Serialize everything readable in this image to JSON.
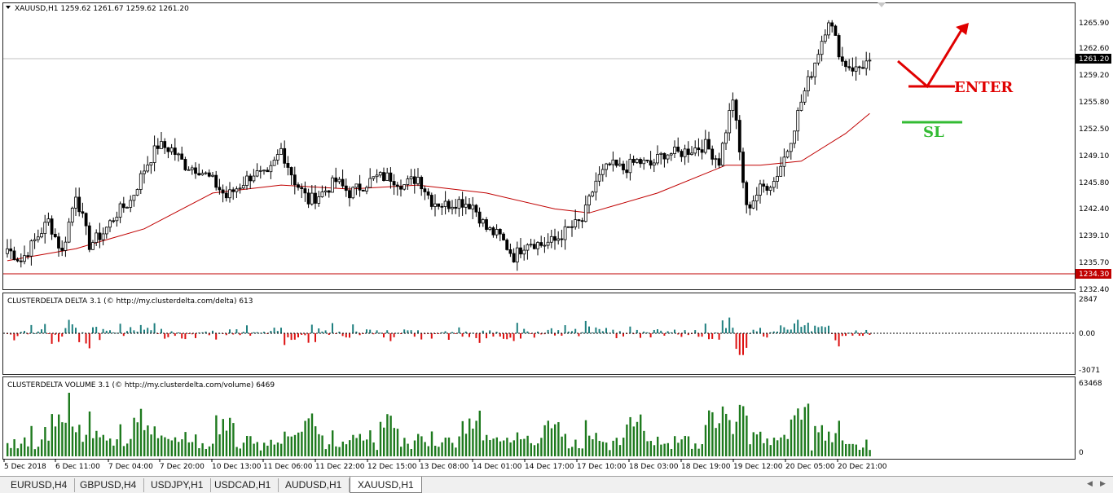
{
  "main_chart": {
    "header": "XAUUSD,H1  1259.62 1261.67 1259.62 1261.20",
    "current_price": "1261.20",
    "hline_price": "1234.30",
    "price_axis": [
      "1265.90",
      "1262.60",
      "1259.20",
      "1255.80",
      "1252.50",
      "1249.10",
      "1245.80",
      "1242.40",
      "1239.10",
      "1235.70",
      "1232.40"
    ],
    "annotations": {
      "enter": "ENTER",
      "sl": "SL"
    },
    "colors": {
      "candle": "#000000",
      "ma": "#c00000",
      "hline": "#c00000",
      "enter": "#e00000",
      "sl": "#33bb33"
    }
  },
  "delta_panel": {
    "header": "CLUSTERDELTA DELTA 3.1 (© http://my.clusterdelta.com/delta) 613",
    "axis": [
      "2847",
      "0.00",
      "-3071"
    ],
    "colors": {
      "positive": "#1f7f7f",
      "negative": "#dd1111"
    }
  },
  "volume_panel": {
    "header": "CLUSTERDELTA VOLUME 3.1 (© http://my.clusterdelta.com/volume) 6469",
    "axis": [
      "63468",
      "0"
    ],
    "colors": {
      "bar": "#1e7a1e"
    }
  },
  "time_axis": [
    "5 Dec 2018",
    "6 Dec 11:00",
    "7 Dec 04:00",
    "7 Dec 20:00",
    "10 Dec 13:00",
    "11 Dec 06:00",
    "11 Dec 22:00",
    "12 Dec 15:00",
    "13 Dec 08:00",
    "14 Dec 01:00",
    "14 Dec 17:00",
    "17 Dec 10:00",
    "18 Dec 03:00",
    "18 Dec 19:00",
    "19 Dec 12:00",
    "20 Dec 05:00",
    "20 Dec 21:00"
  ],
  "chart_data": {
    "type": "candlestick",
    "symbol": "XAUUSD",
    "timeframe": "H1",
    "ohlc_last": {
      "open": 1259.62,
      "high": 1261.67,
      "low": 1259.62,
      "close": 1261.2
    },
    "close_path": [
      [
        0,
        1237.5
      ],
      [
        4,
        1236.0
      ],
      [
        8,
        1238.5
      ],
      [
        12,
        1241.0
      ],
      [
        16,
        1237.0
      ],
      [
        20,
        1244.5
      ],
      [
        24,
        1238.0
      ],
      [
        28,
        1239.5
      ],
      [
        32,
        1242.0
      ],
      [
        36,
        1243.5
      ],
      [
        40,
        1247.5
      ],
      [
        44,
        1250.5
      ],
      [
        48,
        1250.0
      ],
      [
        52,
        1248.0
      ],
      [
        56,
        1247.5
      ],
      [
        60,
        1246.0
      ],
      [
        64,
        1244.0
      ],
      [
        68,
        1245.5
      ],
      [
        72,
        1247.0
      ],
      [
        76,
        1246.5
      ],
      [
        80,
        1250.0
      ],
      [
        84,
        1246.0
      ],
      [
        88,
        1243.5
      ],
      [
        92,
        1244.5
      ],
      [
        96,
        1246.0
      ],
      [
        100,
        1244.5
      ],
      [
        104,
        1245.5
      ],
      [
        108,
        1246.5
      ],
      [
        112,
        1246.5
      ],
      [
        116,
        1245.5
      ],
      [
        120,
        1246.5
      ],
      [
        124,
        1243.5
      ],
      [
        128,
        1243.0
      ],
      [
        132,
        1243.5
      ],
      [
        136,
        1243.0
      ],
      [
        140,
        1240.0
      ],
      [
        144,
        1239.0
      ],
      [
        148,
        1236.5
      ],
      [
        152,
        1238.5
      ],
      [
        156,
        1238.0
      ],
      [
        160,
        1238.5
      ],
      [
        164,
        1240.0
      ],
      [
        168,
        1241.0
      ],
      [
        172,
        1246.0
      ],
      [
        176,
        1248.0
      ],
      [
        180,
        1247.5
      ],
      [
        184,
        1248.5
      ],
      [
        188,
        1248.0
      ],
      [
        192,
        1249.5
      ],
      [
        196,
        1249.5
      ],
      [
        200,
        1250.0
      ],
      [
        204,
        1250.5
      ],
      [
        208,
        1248.5
      ],
      [
        212,
        1256.5
      ],
      [
        216,
        1242.5
      ],
      [
        220,
        1245.0
      ],
      [
        224,
        1246.0
      ],
      [
        228,
        1250.0
      ],
      [
        232,
        1256.0
      ],
      [
        236,
        1261.0
      ],
      [
        240,
        1266.5
      ],
      [
        244,
        1261.0
      ],
      [
        248,
        1260.0
      ],
      [
        252,
        1261.2
      ]
    ],
    "moving_average": [
      [
        0,
        1236.0
      ],
      [
        20,
        1237.5
      ],
      [
        40,
        1240.0
      ],
      [
        60,
        1244.5
      ],
      [
        80,
        1245.5
      ],
      [
        100,
        1245.0
      ],
      [
        120,
        1245.5
      ],
      [
        140,
        1244.5
      ],
      [
        160,
        1242.5
      ],
      [
        170,
        1242.0
      ],
      [
        190,
        1244.5
      ],
      [
        210,
        1248.0
      ],
      [
        220,
        1248.0
      ],
      [
        232,
        1248.5
      ],
      [
        245,
        1252.0
      ],
      [
        252,
        1254.5
      ]
    ],
    "delta": {
      "scale_max": 2847,
      "scale_min": -3071
    },
    "volume": {
      "scale_max": 63468,
      "scale_min": 0
    }
  },
  "tabs": [
    "EURUSD,H4",
    "GBPUSD,H4",
    "USDJPY,H1",
    "USDCAD,H1",
    "AUDUSD,H1",
    "XAUUSD,H1"
  ],
  "active_tab": "XAUUSD,H1"
}
